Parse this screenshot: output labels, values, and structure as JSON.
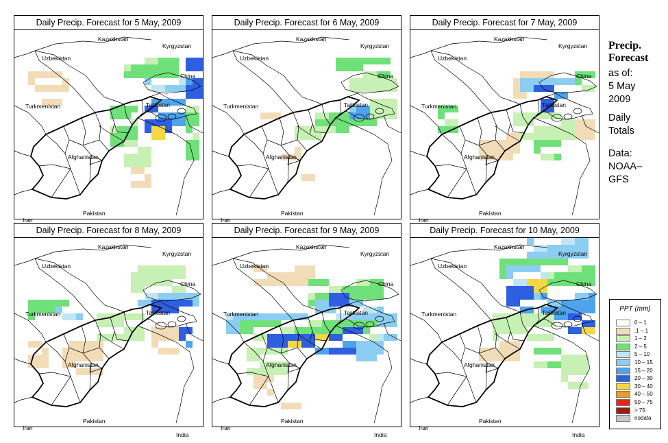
{
  "panels": [
    {
      "title": "Daily Precip. Forecast for  5 May, 2009",
      "pattern": 1
    },
    {
      "title": "Daily Precip. Forecast for  6 May, 2009",
      "pattern": 2
    },
    {
      "title": "Daily Precip. Forecast for  7 May, 2009",
      "pattern": 3
    },
    {
      "title": "Daily Precip. Forecast for  8 May, 2009",
      "pattern": 4
    },
    {
      "title": "Daily Precip. Forecast for  9 May, 2009",
      "pattern": 5
    },
    {
      "title": "Daily Precip. Forecast for  10 May, 2009",
      "pattern": 6
    }
  ],
  "country_labels": [
    "Uzbekistan",
    "Kazakhstan",
    "Kyrgyzstan",
    "China",
    "Turkmenistan",
    "Tajikistan",
    "Afghanistan",
    "Iran",
    "Pakistan",
    "India"
  ],
  "sidebar": {
    "title_line1": "Precip.",
    "title_line2": "Forecast",
    "asof_line1": "as of:",
    "asof_line2": "5 May",
    "asof_line3": "2009",
    "totals_line1": "Daily",
    "totals_line2": "Totals",
    "data_line1": "Data:",
    "data_line2": "NOAA–",
    "data_line3": "GFS"
  },
  "legend": {
    "title": "PPT (mm)",
    "items": [
      {
        "label": "0 – 1",
        "color": "#ffffff"
      },
      {
        "label": ".1 – 1",
        "color": "#f2dcb8"
      },
      {
        "label": "1 – 2",
        "color": "#c6f0b4"
      },
      {
        "label": "2 – 5",
        "color": "#6fe07a"
      },
      {
        "label": "5 – 10",
        "color": "#bfe6f5"
      },
      {
        "label": "10 – 15",
        "color": "#8ccdf2"
      },
      {
        "label": "15 – 20",
        "color": "#4fa3ec"
      },
      {
        "label": "20 – 30",
        "color": "#2e5fe0"
      },
      {
        "label": "30 – 40",
        "color": "#f5d645"
      },
      {
        "label": "40 – 50",
        "color": "#f59a1e"
      },
      {
        "label": "50 – 75",
        "color": "#e8241a"
      },
      {
        "label": "> 75",
        "color": "#9e1a12"
      },
      {
        "label": "nodata",
        "color": "#c8c8c8"
      }
    ]
  }
}
